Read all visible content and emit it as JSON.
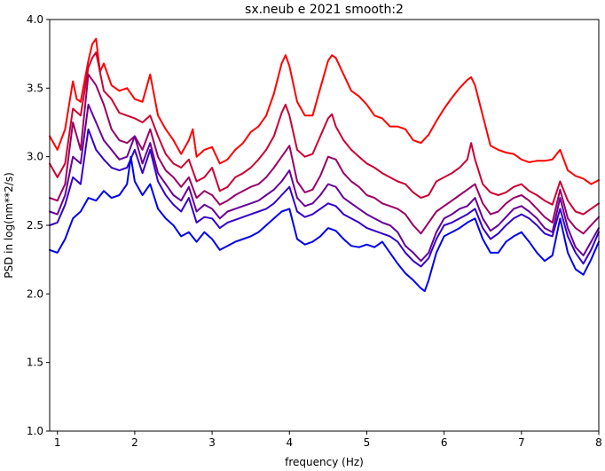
{
  "chart_data": {
    "type": "line",
    "title": "sx.neub e 2021 smooth:2",
    "xlabel": "frequency (Hz)",
    "ylabel": "PSD in log(nm**2/s)",
    "xlim": [
      0.9,
      8.0
    ],
    "ylim": [
      1.0,
      4.0
    ],
    "xticks": [
      "1",
      "2",
      "3",
      "4",
      "5",
      "6",
      "7",
      "8"
    ],
    "yticks": [
      "1.0",
      "1.5",
      "2.0",
      "2.5",
      "3.0",
      "3.5",
      "4.0"
    ],
    "grid": false,
    "legend": "none",
    "series": [
      {
        "color": "#ff0000",
        "x": [
          0.9,
          1.0,
          1.1,
          1.2,
          1.25,
          1.3,
          1.4,
          1.45,
          1.5,
          1.55,
          1.6,
          1.7,
          1.8,
          1.9,
          2.0,
          2.1,
          2.2,
          2.3,
          2.4,
          2.5,
          2.6,
          2.7,
          2.75,
          2.8,
          2.9,
          3.0,
          3.1,
          3.2,
          3.3,
          3.4,
          3.5,
          3.6,
          3.7,
          3.8,
          3.9,
          3.95,
          4.0,
          4.1,
          4.2,
          4.3,
          4.4,
          4.5,
          4.55,
          4.6,
          4.7,
          4.8,
          4.9,
          5.0,
          5.1,
          5.2,
          5.3,
          5.4,
          5.5,
          5.6,
          5.7,
          5.8,
          5.9,
          6.0,
          6.1,
          6.2,
          6.3,
          6.35,
          6.4,
          6.5,
          6.6,
          6.7,
          6.8,
          6.9,
          7.0,
          7.1,
          7.2,
          7.3,
          7.4,
          7.5,
          7.6,
          7.7,
          7.8,
          7.9,
          8.0
        ],
        "values": [
          3.15,
          3.05,
          3.2,
          3.55,
          3.42,
          3.4,
          3.7,
          3.82,
          3.86,
          3.62,
          3.68,
          3.52,
          3.48,
          3.5,
          3.42,
          3.4,
          3.6,
          3.3,
          3.2,
          3.12,
          3.02,
          3.12,
          3.2,
          3.0,
          3.05,
          3.07,
          2.95,
          2.98,
          3.05,
          3.1,
          3.18,
          3.22,
          3.3,
          3.46,
          3.68,
          3.74,
          3.66,
          3.4,
          3.3,
          3.3,
          3.5,
          3.7,
          3.74,
          3.72,
          3.6,
          3.48,
          3.44,
          3.38,
          3.3,
          3.28,
          3.22,
          3.22,
          3.2,
          3.12,
          3.1,
          3.16,
          3.26,
          3.35,
          3.43,
          3.5,
          3.56,
          3.58,
          3.52,
          3.3,
          3.08,
          3.05,
          3.03,
          3.02,
          2.98,
          2.96,
          2.97,
          2.97,
          2.98,
          3.05,
          2.9,
          2.86,
          2.84,
          2.8,
          2.83
        ]
      },
      {
        "color": "#cc0033",
        "x": [
          0.9,
          1.0,
          1.1,
          1.2,
          1.3,
          1.4,
          1.45,
          1.5,
          1.6,
          1.7,
          1.8,
          1.9,
          2.0,
          2.1,
          2.2,
          2.3,
          2.4,
          2.5,
          2.6,
          2.7,
          2.8,
          2.9,
          3.0,
          3.1,
          3.2,
          3.3,
          3.4,
          3.5,
          3.6,
          3.7,
          3.8,
          3.9,
          3.95,
          4.0,
          4.1,
          4.2,
          4.3,
          4.4,
          4.5,
          4.55,
          4.6,
          4.7,
          4.8,
          4.9,
          5.0,
          5.1,
          5.2,
          5.3,
          5.4,
          5.5,
          5.6,
          5.7,
          5.8,
          5.9,
          6.0,
          6.1,
          6.2,
          6.3,
          6.35,
          6.4,
          6.5,
          6.6,
          6.7,
          6.8,
          6.9,
          7.0,
          7.1,
          7.2,
          7.3,
          7.4,
          7.5,
          7.6,
          7.7,
          7.8,
          7.9,
          8.0
        ],
        "values": [
          2.95,
          2.85,
          2.95,
          3.35,
          3.3,
          3.65,
          3.72,
          3.76,
          3.48,
          3.42,
          3.32,
          3.3,
          3.28,
          3.25,
          3.3,
          3.15,
          3.02,
          2.95,
          2.92,
          2.98,
          2.82,
          2.85,
          2.92,
          2.75,
          2.78,
          2.85,
          2.88,
          2.92,
          2.98,
          3.05,
          3.15,
          3.32,
          3.38,
          3.3,
          3.05,
          3.0,
          3.02,
          3.15,
          3.28,
          3.31,
          3.22,
          3.12,
          3.05,
          3.0,
          2.95,
          2.92,
          2.88,
          2.85,
          2.82,
          2.8,
          2.74,
          2.7,
          2.72,
          2.82,
          2.85,
          2.88,
          2.92,
          2.98,
          3.1,
          2.98,
          2.8,
          2.74,
          2.72,
          2.74,
          2.78,
          2.8,
          2.75,
          2.72,
          2.68,
          2.65,
          2.82,
          2.68,
          2.6,
          2.58,
          2.62,
          2.66
        ]
      },
      {
        "color": "#990066",
        "x": [
          0.9,
          1.0,
          1.1,
          1.2,
          1.3,
          1.4,
          1.5,
          1.6,
          1.7,
          1.8,
          1.9,
          2.0,
          2.1,
          2.2,
          2.3,
          2.4,
          2.5,
          2.6,
          2.7,
          2.8,
          2.9,
          3.0,
          3.1,
          3.2,
          3.3,
          3.4,
          3.5,
          3.6,
          3.7,
          3.8,
          3.9,
          4.0,
          4.1,
          4.2,
          4.3,
          4.4,
          4.5,
          4.6,
          4.7,
          4.8,
          4.9,
          5.0,
          5.1,
          5.2,
          5.3,
          5.4,
          5.5,
          5.6,
          5.7,
          5.8,
          5.9,
          6.0,
          6.1,
          6.2,
          6.3,
          6.4,
          6.5,
          6.6,
          6.7,
          6.8,
          6.9,
          7.0,
          7.1,
          7.2,
          7.3,
          7.4,
          7.5,
          7.6,
          7.7,
          7.8,
          7.9,
          8.0
        ],
        "values": [
          2.7,
          2.68,
          2.8,
          3.25,
          3.05,
          3.6,
          3.52,
          3.38,
          3.2,
          3.12,
          3.1,
          3.15,
          3.05,
          3.2,
          3.0,
          2.9,
          2.85,
          2.78,
          2.85,
          2.7,
          2.75,
          2.72,
          2.65,
          2.68,
          2.72,
          2.75,
          2.78,
          2.8,
          2.85,
          2.92,
          3.0,
          3.08,
          2.82,
          2.74,
          2.76,
          2.86,
          3.0,
          2.98,
          2.88,
          2.82,
          2.78,
          2.72,
          2.7,
          2.66,
          2.64,
          2.62,
          2.58,
          2.5,
          2.44,
          2.52,
          2.6,
          2.64,
          2.68,
          2.72,
          2.76,
          2.8,
          2.66,
          2.58,
          2.6,
          2.66,
          2.7,
          2.72,
          2.68,
          2.62,
          2.56,
          2.52,
          2.76,
          2.55,
          2.48,
          2.44,
          2.5,
          2.56
        ]
      },
      {
        "color": "#660099",
        "x": [
          0.9,
          1.0,
          1.1,
          1.2,
          1.3,
          1.4,
          1.5,
          1.6,
          1.7,
          1.8,
          1.9,
          2.0,
          2.1,
          2.2,
          2.3,
          2.4,
          2.5,
          2.6,
          2.7,
          2.8,
          2.9,
          3.0,
          3.1,
          3.2,
          3.3,
          3.4,
          3.5,
          3.6,
          3.7,
          3.8,
          3.9,
          4.0,
          4.1,
          4.2,
          4.3,
          4.4,
          4.5,
          4.6,
          4.7,
          4.8,
          4.9,
          5.0,
          5.1,
          5.2,
          5.3,
          5.4,
          5.5,
          5.6,
          5.7,
          5.8,
          5.9,
          6.0,
          6.1,
          6.2,
          6.3,
          6.4,
          6.5,
          6.6,
          6.7,
          6.8,
          6.9,
          7.0,
          7.1,
          7.2,
          7.3,
          7.4,
          7.5,
          7.6,
          7.7,
          7.8,
          7.9,
          8.0
        ],
        "values": [
          2.6,
          2.58,
          2.72,
          3.0,
          2.95,
          3.38,
          3.25,
          3.12,
          3.05,
          2.98,
          3.0,
          3.15,
          2.95,
          3.1,
          2.88,
          2.8,
          2.72,
          2.68,
          2.78,
          2.6,
          2.65,
          2.62,
          2.55,
          2.6,
          2.62,
          2.64,
          2.66,
          2.68,
          2.72,
          2.76,
          2.82,
          2.9,
          2.7,
          2.64,
          2.66,
          2.72,
          2.8,
          2.78,
          2.7,
          2.66,
          2.62,
          2.58,
          2.55,
          2.52,
          2.5,
          2.45,
          2.35,
          2.3,
          2.24,
          2.3,
          2.45,
          2.55,
          2.58,
          2.62,
          2.64,
          2.7,
          2.55,
          2.46,
          2.5,
          2.56,
          2.62,
          2.64,
          2.6,
          2.55,
          2.48,
          2.45,
          2.7,
          2.48,
          2.34,
          2.28,
          2.38,
          2.48
        ]
      },
      {
        "color": "#3300cc",
        "x": [
          0.9,
          1.0,
          1.1,
          1.2,
          1.3,
          1.4,
          1.5,
          1.6,
          1.7,
          1.8,
          1.9,
          2.0,
          2.1,
          2.2,
          2.3,
          2.4,
          2.5,
          2.6,
          2.7,
          2.8,
          2.9,
          3.0,
          3.1,
          3.2,
          3.3,
          3.4,
          3.5,
          3.6,
          3.7,
          3.8,
          3.9,
          4.0,
          4.1,
          4.2,
          4.3,
          4.4,
          4.5,
          4.6,
          4.7,
          4.8,
          4.9,
          5.0,
          5.1,
          5.2,
          5.3,
          5.4,
          5.5,
          5.6,
          5.7,
          5.8,
          5.9,
          6.0,
          6.1,
          6.2,
          6.3,
          6.4,
          6.5,
          6.6,
          6.7,
          6.8,
          6.9,
          7.0,
          7.1,
          7.2,
          7.3,
          7.4,
          7.5,
          7.6,
          7.7,
          7.8,
          7.9,
          8.0
        ],
        "values": [
          2.5,
          2.52,
          2.65,
          2.85,
          2.8,
          3.2,
          3.05,
          2.98,
          2.92,
          2.9,
          2.92,
          3.05,
          2.88,
          3.05,
          2.82,
          2.72,
          2.65,
          2.6,
          2.7,
          2.52,
          2.56,
          2.55,
          2.48,
          2.52,
          2.54,
          2.56,
          2.58,
          2.6,
          2.62,
          2.66,
          2.72,
          2.78,
          2.6,
          2.56,
          2.58,
          2.62,
          2.66,
          2.64,
          2.58,
          2.55,
          2.52,
          2.48,
          2.46,
          2.44,
          2.42,
          2.38,
          2.3,
          2.24,
          2.2,
          2.26,
          2.4,
          2.5,
          2.52,
          2.55,
          2.58,
          2.62,
          2.48,
          2.4,
          2.44,
          2.5,
          2.55,
          2.58,
          2.55,
          2.5,
          2.44,
          2.42,
          2.62,
          2.42,
          2.3,
          2.22,
          2.32,
          2.45
        ]
      },
      {
        "color": "#0000ee",
        "x": [
          0.9,
          1.0,
          1.1,
          1.2,
          1.3,
          1.4,
          1.5,
          1.6,
          1.7,
          1.8,
          1.9,
          1.95,
          2.0,
          2.1,
          2.2,
          2.3,
          2.4,
          2.5,
          2.6,
          2.7,
          2.8,
          2.9,
          3.0,
          3.1,
          3.2,
          3.3,
          3.4,
          3.5,
          3.6,
          3.7,
          3.8,
          3.9,
          4.0,
          4.1,
          4.2,
          4.3,
          4.4,
          4.5,
          4.6,
          4.7,
          4.8,
          4.9,
          5.0,
          5.1,
          5.2,
          5.3,
          5.4,
          5.5,
          5.6,
          5.7,
          5.75,
          5.8,
          5.9,
          6.0,
          6.1,
          6.2,
          6.3,
          6.4,
          6.5,
          6.6,
          6.7,
          6.8,
          6.9,
          7.0,
          7.1,
          7.2,
          7.3,
          7.4,
          7.5,
          7.6,
          7.7,
          7.8,
          7.9,
          8.0
        ],
        "values": [
          2.32,
          2.3,
          2.4,
          2.55,
          2.6,
          2.7,
          2.68,
          2.75,
          2.7,
          2.72,
          2.8,
          3.0,
          2.82,
          2.72,
          2.8,
          2.62,
          2.55,
          2.5,
          2.42,
          2.45,
          2.38,
          2.45,
          2.4,
          2.32,
          2.35,
          2.38,
          2.4,
          2.42,
          2.45,
          2.5,
          2.55,
          2.6,
          2.62,
          2.4,
          2.36,
          2.38,
          2.42,
          2.48,
          2.46,
          2.4,
          2.35,
          2.34,
          2.36,
          2.34,
          2.38,
          2.3,
          2.22,
          2.15,
          2.1,
          2.04,
          2.02,
          2.1,
          2.3,
          2.42,
          2.45,
          2.48,
          2.52,
          2.55,
          2.4,
          2.3,
          2.3,
          2.38,
          2.42,
          2.45,
          2.38,
          2.3,
          2.24,
          2.28,
          2.55,
          2.3,
          2.18,
          2.14,
          2.25,
          2.38
        ]
      }
    ]
  }
}
